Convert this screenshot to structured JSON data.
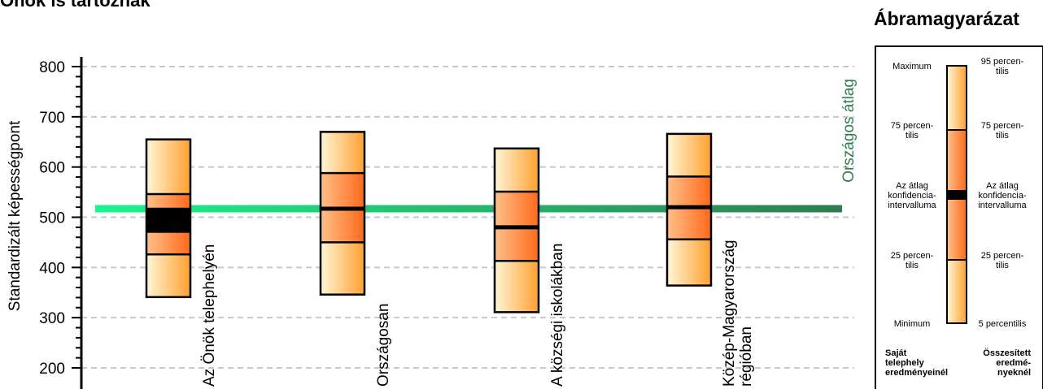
{
  "page": {
    "title": "Önök is tartoznak"
  },
  "colors": {
    "box_light": "#fff2c2",
    "box_mid": "#ffc08a",
    "box_dark": "#ff6a1a",
    "box_top_light": "#fff6d6",
    "box_top_dark": "#ffa030",
    "national_line_left": "#19f58c",
    "national_line_right": "#2e7d4f",
    "grid": "#c8c8c8",
    "ci": "#000000"
  },
  "chart_data": {
    "type": "box",
    "ylabel": "Standardizált képességpont",
    "ylim": [
      200,
      800
    ],
    "yticks": [
      200,
      300,
      400,
      500,
      600,
      700,
      800
    ],
    "grid": true,
    "reference_line": {
      "label": "Országos átlag",
      "value": 517
    },
    "categories": [
      "Az Önök telephelyén",
      "Országosan",
      "A községi iskolákban",
      "Közép-Magyarország régióban"
    ],
    "boxes": [
      {
        "p5": 341,
        "p25": 426,
        "mean": 494,
        "ci": [
          469,
          519
        ],
        "p75": 546,
        "p95": 655
      },
      {
        "p5": 346,
        "p25": 450,
        "mean": 517,
        "ci": [
          517,
          517
        ],
        "p75": 588,
        "p95": 670
      },
      {
        "p5": 311,
        "p25": 413,
        "mean": 480,
        "ci": [
          480,
          480
        ],
        "p75": 551,
        "p95": 637
      },
      {
        "p5": 364,
        "p25": 456,
        "mean": 520,
        "ci": [
          520,
          520
        ],
        "p75": 581,
        "p95": 666
      }
    ]
  },
  "legend": {
    "title": "Ábramagyarázat",
    "left_labels": [
      "Maximum",
      "75 percen-\ntilis",
      "Az átlag\nkonfidencia-\nintervalluma",
      "25 percen-\ntilis",
      "Minimum"
    ],
    "right_labels": [
      "95 percen-\ntilis",
      "75 percen-\ntilis",
      "Az átlag\nkonfidencia-\nintervalluma",
      "25 percen-\ntilis",
      "5 percentilis"
    ],
    "footer_left": "Saját\ntelephely\neredményeinél",
    "footer_right": "Összesített\neredmé-\nnyeknél"
  }
}
